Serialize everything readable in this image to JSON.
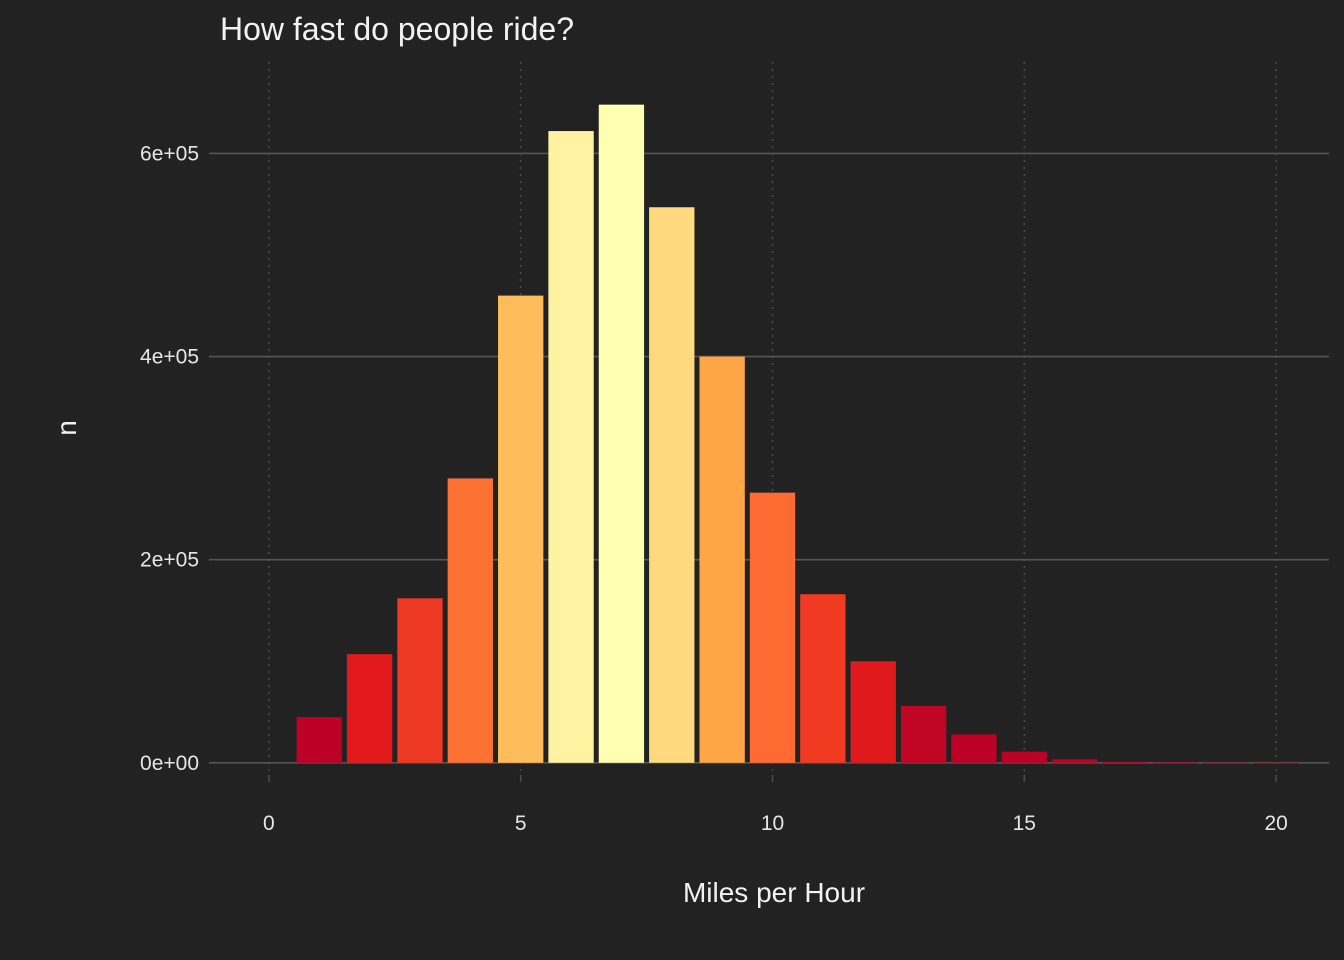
{
  "chart_data": {
    "type": "bar",
    "title": "How fast do people ride?",
    "xlabel": "Miles per Hour",
    "ylabel": "n",
    "xlim": [
      -1.05,
      21.05
    ],
    "ylim": [
      -12000,
      690000
    ],
    "x_ticks": [
      0,
      5,
      10,
      15,
      20
    ],
    "x_tick_labels": [
      "0",
      "5",
      "10",
      "15",
      "20"
    ],
    "y_ticks": [
      0,
      200000,
      400000,
      600000
    ],
    "y_tick_labels": [
      "0e+00",
      "2e+05",
      "4e+05",
      "6e+05"
    ],
    "grid": {
      "major_y": "solid",
      "major_x": "dotted"
    },
    "legend": "none",
    "bars": [
      {
        "x": 1,
        "value": 45000,
        "color": "#bd0026"
      },
      {
        "x": 2,
        "value": 107000,
        "color": "#e31a1c"
      },
      {
        "x": 3,
        "value": 162000,
        "color": "#ee3a24"
      },
      {
        "x": 4,
        "value": 280000,
        "color": "#fd7233"
      },
      {
        "x": 5,
        "value": 460000,
        "color": "#febc5a"
      },
      {
        "x": 6,
        "value": 622000,
        "color": "#fff2a0"
      },
      {
        "x": 7,
        "value": 648000,
        "color": "#ffffb2"
      },
      {
        "x": 8,
        "value": 547000,
        "color": "#fed97d"
      },
      {
        "x": 9,
        "value": 400000,
        "color": "#fea646"
      },
      {
        "x": 10,
        "value": 266000,
        "color": "#fd6a32"
      },
      {
        "x": 11,
        "value": 166000,
        "color": "#f03b22"
      },
      {
        "x": 12,
        "value": 100000,
        "color": "#e0191c"
      },
      {
        "x": 13,
        "value": 56000,
        "color": "#c10524"
      },
      {
        "x": 14,
        "value": 28000,
        "color": "#bd0026"
      },
      {
        "x": 15,
        "value": 11000,
        "color": "#bd0026"
      },
      {
        "x": 16,
        "value": 3500,
        "color": "#bd0026"
      },
      {
        "x": 17,
        "value": 900,
        "color": "#bd0026"
      },
      {
        "x": 18,
        "value": 400,
        "color": "#bd0026"
      },
      {
        "x": 19,
        "value": 250,
        "color": "#bd0026"
      },
      {
        "x": 20,
        "value": 150,
        "color": "#bd0026"
      }
    ],
    "colors": {
      "background": "#222222",
      "gridline_major_y": "#555555",
      "gridline_x": "#4a4a4a",
      "text": "#f2f2f2"
    }
  }
}
